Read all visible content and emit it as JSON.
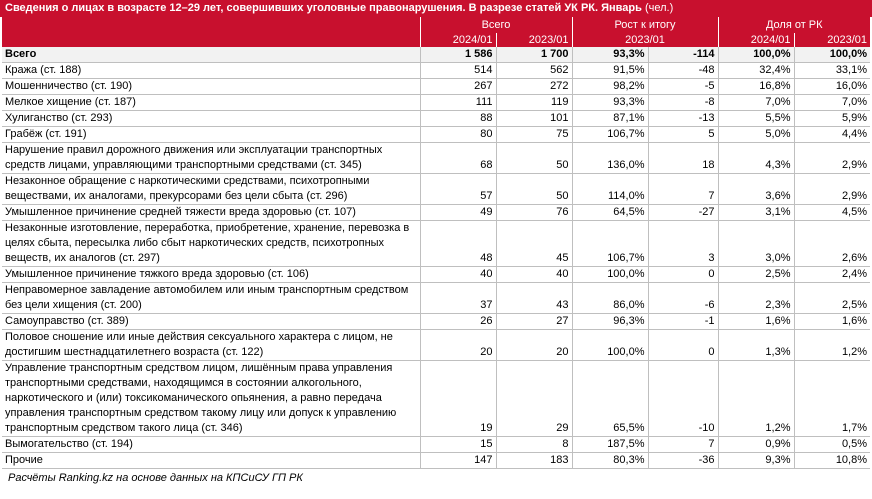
{
  "title": "Сведения о лицах в возрасте 12–29 лет, совершивших уголовные правонарушения. В разрезе статей УК РК. Январь",
  "title_unit": "(чел.)",
  "headers": {
    "group_total": "Всего",
    "group_growth": "Рост к итогу",
    "group_share": "Доля от РК",
    "c2024": "2024/01",
    "c2023": "2023/01",
    "g2023": "2023/01",
    "s2024": "2024/01",
    "s2023": "2023/01"
  },
  "rows": [
    {
      "label": "Всего",
      "v2024": "1 586",
      "v2023": "1 700",
      "pct": "93,3%",
      "diff": "-114",
      "s2024": "100,0%",
      "s2023": "100,0%",
      "total": true
    },
    {
      "label": "Кража (ст. 188)",
      "v2024": "514",
      "v2023": "562",
      "pct": "91,5%",
      "diff": "-48",
      "s2024": "32,4%",
      "s2023": "33,1%"
    },
    {
      "label": "Мошенничество (ст. 190)",
      "v2024": "267",
      "v2023": "272",
      "pct": "98,2%",
      "diff": "-5",
      "s2024": "16,8%",
      "s2023": "16,0%"
    },
    {
      "label": "Мелкое хищение (ст. 187)",
      "v2024": "111",
      "v2023": "119",
      "pct": "93,3%",
      "diff": "-8",
      "s2024": "7,0%",
      "s2023": "7,0%"
    },
    {
      "label": "Хулиганство (ст. 293)",
      "v2024": "88",
      "v2023": "101",
      "pct": "87,1%",
      "diff": "-13",
      "s2024": "5,5%",
      "s2023": "5,9%"
    },
    {
      "label": "Грабёж (ст. 191)",
      "v2024": "80",
      "v2023": "75",
      "pct": "106,7%",
      "diff": "5",
      "s2024": "5,0%",
      "s2023": "4,4%"
    },
    {
      "label": "Нарушение правил дорожного движения или эксплуатации транспортных средств лицами, управляющими транспортными средствами (ст. 345)",
      "v2024": "68",
      "v2023": "50",
      "pct": "136,0%",
      "diff": "18",
      "s2024": "4,3%",
      "s2023": "2,9%"
    },
    {
      "label": "Незаконное обращение с наркотическими средствами, психотропными веществами, их аналогами, прекурсорами без цели сбыта (ст. 296)",
      "v2024": "57",
      "v2023": "50",
      "pct": "114,0%",
      "diff": "7",
      "s2024": "3,6%",
      "s2023": "2,9%"
    },
    {
      "label": "Умышленное причинение средней тяжести вреда здоровью (ст. 107)",
      "v2024": "49",
      "v2023": "76",
      "pct": "64,5%",
      "diff": "-27",
      "s2024": "3,1%",
      "s2023": "4,5%"
    },
    {
      "label": "Незаконные изготовление, переработка, приобретение, хранение, перевозка в целях сбыта, пересылка либо сбыт наркотических средств, психотропных веществ, их аналогов (ст. 297)",
      "v2024": "48",
      "v2023": "45",
      "pct": "106,7%",
      "diff": "3",
      "s2024": "3,0%",
      "s2023": "2,6%"
    },
    {
      "label": "Умышленное причинение тяжкого вреда здоровью (ст. 106)",
      "v2024": "40",
      "v2023": "40",
      "pct": "100,0%",
      "diff": "0",
      "s2024": "2,5%",
      "s2023": "2,4%"
    },
    {
      "label": "Неправомерное завладение автомобилем или иным транспортным средством без цели хищения (ст. 200)",
      "v2024": "37",
      "v2023": "43",
      "pct": "86,0%",
      "diff": "-6",
      "s2024": "2,3%",
      "s2023": "2,5%"
    },
    {
      "label": "Самоуправство (ст. 389)",
      "v2024": "26",
      "v2023": "27",
      "pct": "96,3%",
      "diff": "-1",
      "s2024": "1,6%",
      "s2023": "1,6%"
    },
    {
      "label": "Половое сношение или иные действия сексуального характера с лицом, не достигшим шестнадцатилетнего возраста (ст. 122)",
      "v2024": "20",
      "v2023": "20",
      "pct": "100,0%",
      "diff": "0",
      "s2024": "1,3%",
      "s2023": "1,2%"
    },
    {
      "label": "Управление транспортным средством лицом, лишённым права управления транспортными средствами, находящимся в состоянии алкогольного, наркотического и (или) токсикоманического опьянения, а равно передача управления транспортным средством такому лицу или допуск к управлению транспортным средством такого лица (ст. 346)",
      "v2024": "19",
      "v2023": "29",
      "pct": "65,5%",
      "diff": "-10",
      "s2024": "1,2%",
      "s2023": "1,7%"
    },
    {
      "label": "Вымогательство (ст. 194)",
      "v2024": "15",
      "v2023": "8",
      "pct": "187,5%",
      "diff": "7",
      "s2024": "0,9%",
      "s2023": "0,5%"
    },
    {
      "label": "Прочие",
      "v2024": "147",
      "v2023": "183",
      "pct": "80,3%",
      "diff": "-36",
      "s2024": "9,3%",
      "s2023": "10,8%"
    }
  ],
  "footer": "Расчёты Ranking.kz на основе данных на КПСиСУ ГП РК"
}
